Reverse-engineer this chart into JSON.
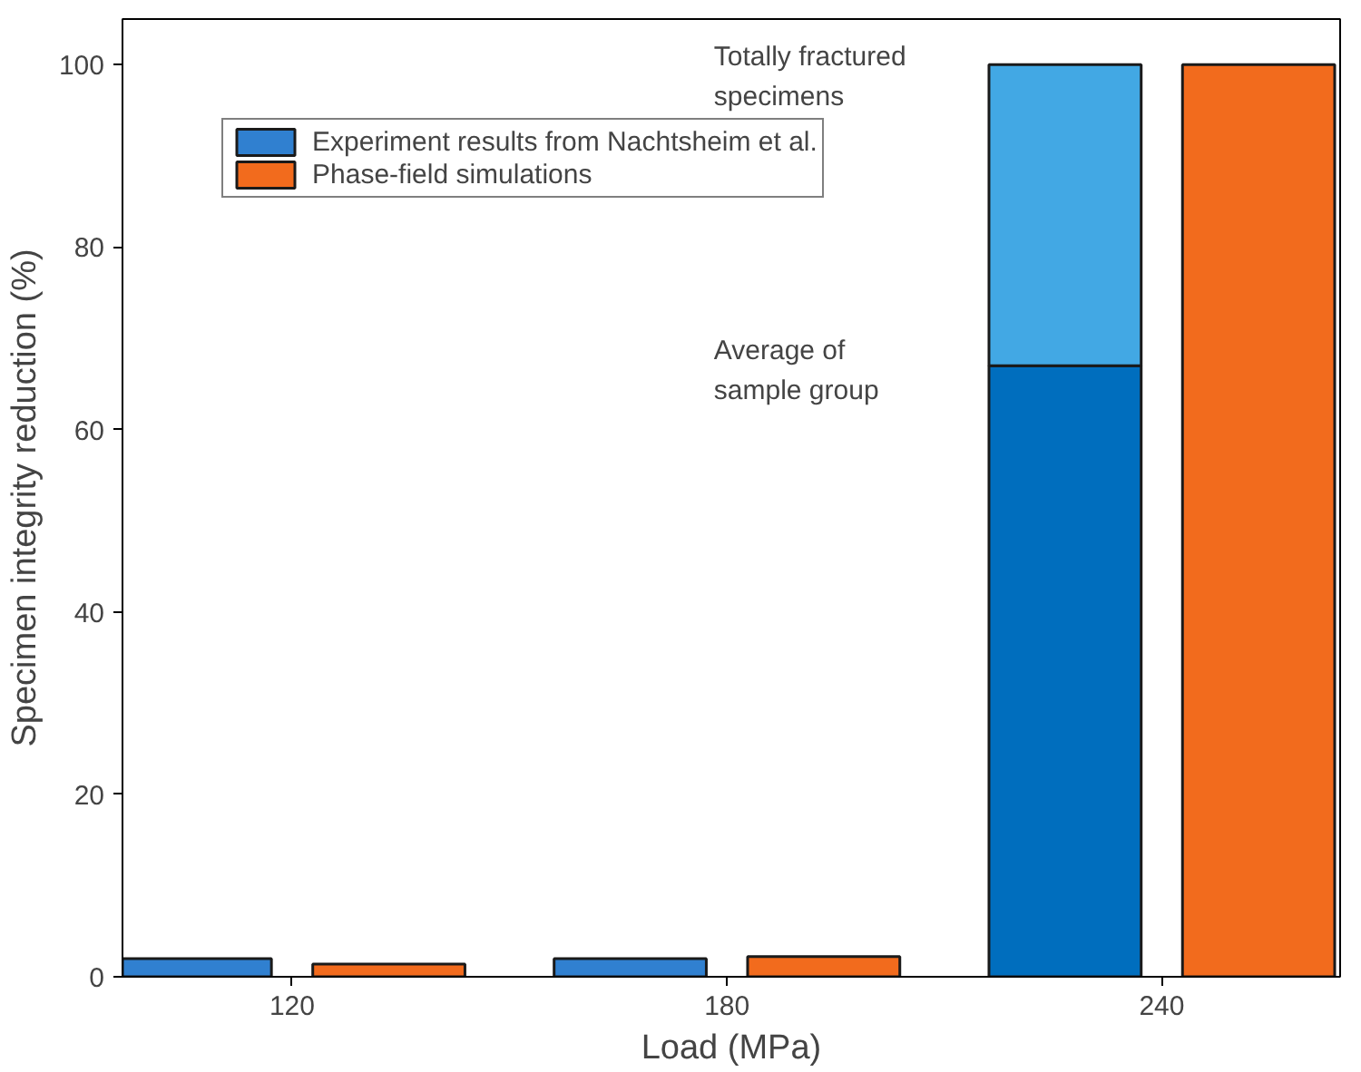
{
  "chart_data": {
    "type": "bar",
    "xlabel": "Load (MPa)",
    "ylabel": "Specimen integrity reduction (%)",
    "categories": [
      "120",
      "180",
      "240"
    ],
    "series": [
      {
        "name": "Experiment results from Nachtsheim et al.",
        "color": "#3080d0",
        "colors": [
          "#3080d0",
          "#3080d0",
          "#006ebe"
        ],
        "values": [
          2,
          2,
          67
        ]
      },
      {
        "color": "#42a8e4",
        "values": [
          null,
          null,
          33
        ],
        "base": [
          null,
          null,
          67
        ]
      },
      {
        "name": "Phase-field simulations",
        "color": "#f26b1d",
        "values": [
          1.4,
          2.2,
          100
        ]
      }
    ],
    "ylim": [
      0,
      105
    ],
    "yticks": [
      0,
      20,
      40,
      60,
      80,
      100
    ],
    "grid": false,
    "legend": "top left",
    "annotations": [
      "Totally fractured\nspecimens",
      "Average of\nsample group"
    ]
  }
}
